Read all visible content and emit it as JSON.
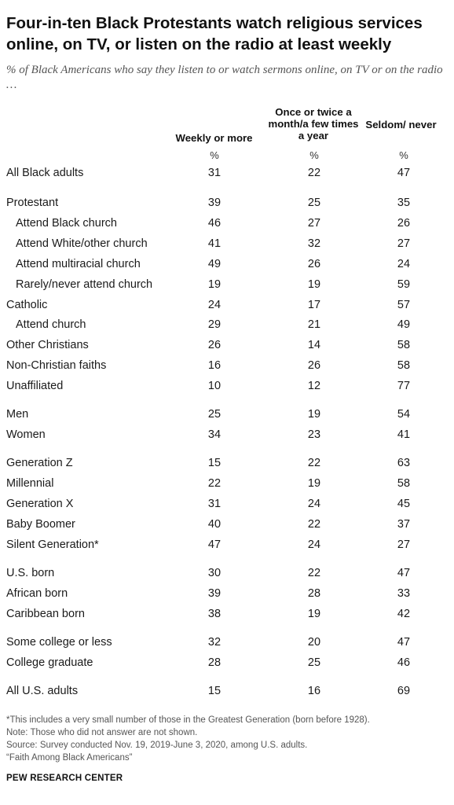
{
  "title": "Four-in-ten Black Protestants watch religious services online, on TV, or listen on the radio at least weekly",
  "subtitle": "% of Black Americans who say they listen to or watch sermons online, on TV or on the radio …",
  "chart_data": {
    "type": "table",
    "columns": [
      "Weekly or more",
      "Once or twice a month/a few times a year",
      "Seldom/ never"
    ],
    "column_unit": "%",
    "rows": [
      {
        "label": "All Black adults",
        "indent": 0,
        "values": [
          31,
          22,
          47
        ]
      },
      {
        "label": "Protestant",
        "indent": 0,
        "values": [
          39,
          25,
          35
        ]
      },
      {
        "label": "Attend Black church",
        "indent": 1,
        "values": [
          46,
          27,
          26
        ]
      },
      {
        "label": "Attend White/other church",
        "indent": 1,
        "values": [
          41,
          32,
          27
        ]
      },
      {
        "label": "Attend multiracial church",
        "indent": 1,
        "values": [
          49,
          26,
          24
        ]
      },
      {
        "label": "Rarely/never attend church",
        "indent": 1,
        "values": [
          19,
          19,
          59
        ]
      },
      {
        "label": "Catholic",
        "indent": 0,
        "values": [
          24,
          17,
          57
        ]
      },
      {
        "label": "Attend church",
        "indent": 1,
        "values": [
          29,
          21,
          49
        ]
      },
      {
        "label": "Other Christians",
        "indent": 0,
        "values": [
          26,
          14,
          58
        ]
      },
      {
        "label": "Non-Christian faiths",
        "indent": 0,
        "values": [
          16,
          26,
          58
        ]
      },
      {
        "label": "Unaffiliated",
        "indent": 0,
        "values": [
          10,
          12,
          77
        ]
      },
      {
        "label": "Men",
        "indent": 0,
        "values": [
          25,
          19,
          54
        ]
      },
      {
        "label": "Women",
        "indent": 0,
        "values": [
          34,
          23,
          41
        ]
      },
      {
        "label": "Generation Z",
        "indent": 0,
        "values": [
          15,
          22,
          63
        ]
      },
      {
        "label": "Millennial",
        "indent": 0,
        "values": [
          22,
          19,
          58
        ]
      },
      {
        "label": "Generation X",
        "indent": 0,
        "values": [
          31,
          24,
          45
        ]
      },
      {
        "label": "Baby Boomer",
        "indent": 0,
        "values": [
          40,
          22,
          37
        ]
      },
      {
        "label": "Silent Generation*",
        "indent": 0,
        "values": [
          47,
          24,
          27
        ]
      },
      {
        "label": "U.S. born",
        "indent": 0,
        "values": [
          30,
          22,
          47
        ]
      },
      {
        "label": "African born",
        "indent": 0,
        "values": [
          39,
          28,
          33
        ]
      },
      {
        "label": "Caribbean born",
        "indent": 0,
        "values": [
          38,
          19,
          42
        ]
      },
      {
        "label": "Some college or less",
        "indent": 0,
        "values": [
          32,
          20,
          47
        ]
      },
      {
        "label": "College graduate",
        "indent": 0,
        "values": [
          28,
          25,
          46
        ]
      },
      {
        "label": "All U.S. adults",
        "indent": 0,
        "values": [
          15,
          16,
          69
        ]
      }
    ]
  },
  "footnotes": [
    "*This includes a very small number of those in the Greatest Generation (born before 1928).",
    "Note: Those who did not answer are not shown.",
    "Source: Survey conducted Nov. 19, 2019-June 3, 2020, among U.S. adults.",
    "“Faith Among Black Americans”"
  ],
  "brand": "PEW RESEARCH CENTER"
}
